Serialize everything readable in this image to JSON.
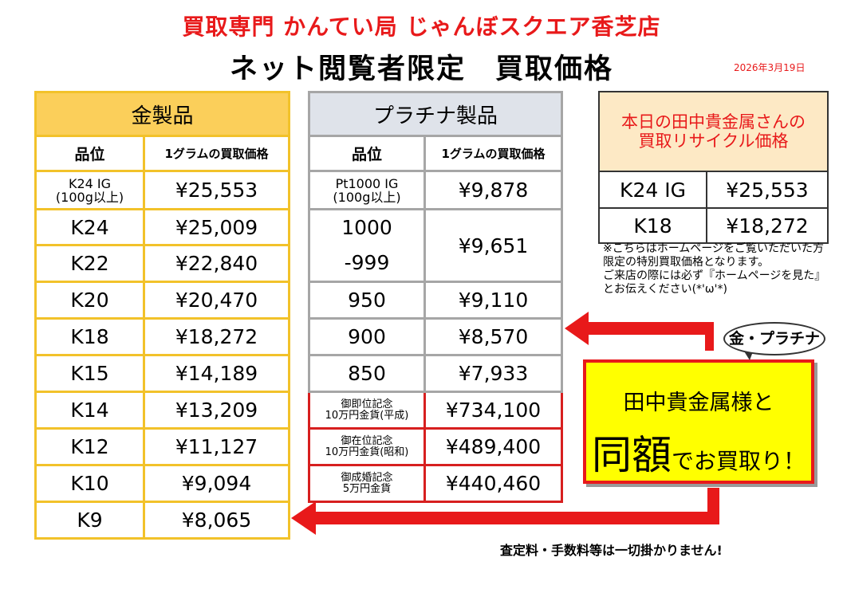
{
  "header": {
    "shop_name": "買取専門 かんてい局 じゃんぼスクエア香芝店",
    "title": "ネット閲覧者限定　買取価格",
    "date": "2026年3月19日"
  },
  "gold": {
    "heading": "金製品",
    "col_purity": "品位",
    "col_price": "1グラムの買取価格",
    "rows": [
      {
        "purity": "K24 IG\n(100g以上)",
        "price": "¥25,553"
      },
      {
        "purity": "K24",
        "price": "¥25,009"
      },
      {
        "purity": "K22",
        "price": "¥22,840"
      },
      {
        "purity": "K20",
        "price": "¥20,470"
      },
      {
        "purity": "K18",
        "price": "¥18,272"
      },
      {
        "purity": "K15",
        "price": "¥14,189"
      },
      {
        "purity": "K14",
        "price": "¥13,209"
      },
      {
        "purity": "K12",
        "price": "¥11,127"
      },
      {
        "purity": "K10",
        "price": "¥9,094"
      },
      {
        "purity": "K9",
        "price": "¥8,065"
      }
    ]
  },
  "platinum": {
    "heading": "プラチナ製品",
    "col_purity": "品位",
    "col_price": "1グラムの買取価格",
    "row_ig": {
      "purity": "Pt1000 IG\n(100g以上)",
      "price": "¥9,878"
    },
    "row_1000": {
      "purity_a": "1000",
      "purity_b": "-999",
      "price": "¥9,651"
    },
    "rows": [
      {
        "purity": "950",
        "price": "¥9,110"
      },
      {
        "purity": "900",
        "price": "¥8,570"
      },
      {
        "purity": "850",
        "price": "¥7,933"
      }
    ],
    "coins": [
      {
        "name": "御即位記念\n10万円金貨(平成)",
        "price": "¥734,100"
      },
      {
        "name": "御在位記念\n10万円金貨(昭和)",
        "price": "¥489,400"
      },
      {
        "name": "御成婚記念\n5万円金貨",
        "price": "¥440,460"
      }
    ]
  },
  "daily": {
    "title": "本日の田中貴金属さんの\n買取リサイクル価格",
    "rows": [
      {
        "item": "K24 IG",
        "price": "¥25,553"
      },
      {
        "item": "K18",
        "price": "¥18,272"
      }
    ]
  },
  "note": "※こちらはホームページをご覧いただいた方限定の特別買取価格となります。\nご来店の際には必ず『ホームページを見た』とお伝えください(*'ω'*)",
  "bubble": "金・プラチナ",
  "promo": {
    "line1": "田中貴金属様と",
    "big": "同額",
    "rest": "でお買取り！"
  },
  "fee_note": "査定料・手数料等は一切掛かりません!",
  "colors": {
    "red": "#e8191a",
    "gold_border": "#f2c22a",
    "gold_header": "#fbcf5a",
    "plat_border": "#a6a6a6",
    "plat_header": "#dfe3ea",
    "promo_bg": "#ffff00"
  }
}
